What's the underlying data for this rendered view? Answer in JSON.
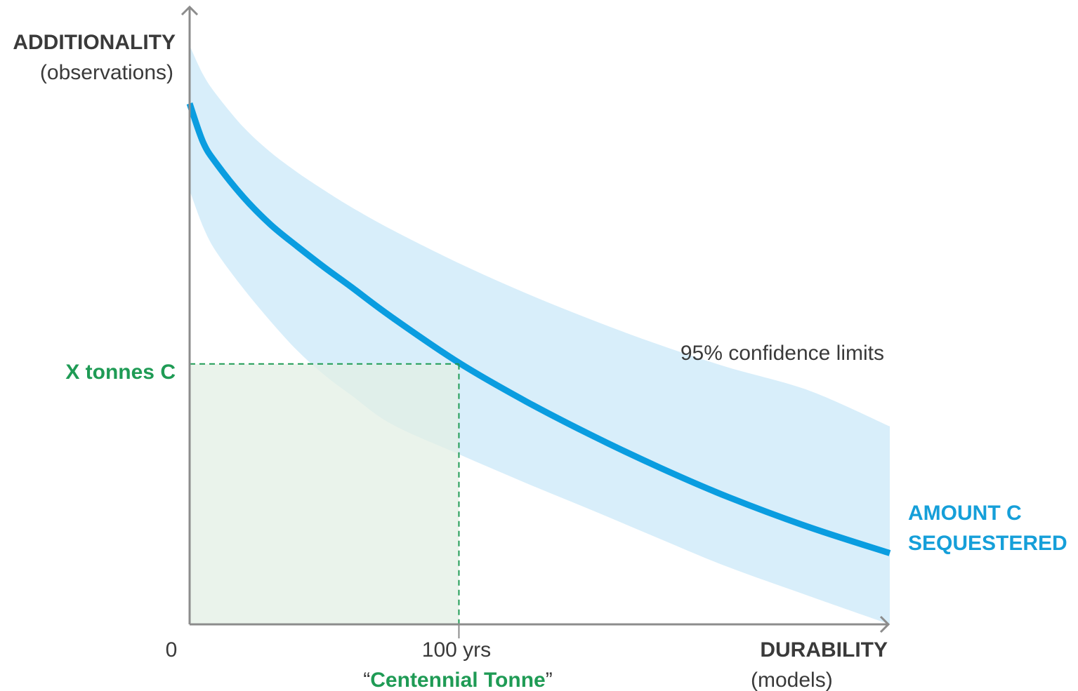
{
  "chart_data": {
    "type": "line",
    "y_axis": {
      "label": "ADDITIONALITY",
      "sublabel": "(observations)"
    },
    "x_axis": {
      "label": "DURABILITY",
      "sublabel": "(models)"
    },
    "x_ticks": {
      "origin": "0",
      "marker": "100 yrs"
    },
    "xlim": [
      0,
      260
    ],
    "ylim": [
      0,
      100
    ],
    "highlight": {
      "x": 100,
      "y": 45,
      "x_label": "“Centennial Tonne”",
      "x_label_parts": {
        "open_quote": "“",
        "text": "Centennial Tonne",
        "close_quote": "”"
      },
      "y_label": "X tonnes C"
    },
    "band_label": "95% confidence limits",
    "series": [
      {
        "name": "AMOUNT C SEQUESTERED",
        "name_lines": [
          "AMOUNT C",
          "SEQUESTERED"
        ],
        "x": [
          0,
          5,
          10,
          20,
          30,
          40,
          50,
          60,
          75,
          100,
          125,
          150,
          175,
          200,
          230,
          260
        ],
        "y": [
          90,
          83.3,
          79.6,
          73.8,
          69.1,
          65.3,
          61.7,
          58.3,
          53.1,
          45.2,
          38.5,
          32.5,
          27.0,
          22.0,
          16.8,
          17.7
        ],
        "lower": [
          75,
          68.7,
          64.3,
          58.0,
          52.4,
          47.3,
          43.1,
          39.6,
          34.6,
          29.4,
          24.4,
          19.6,
          14.7,
          9.9,
          4.9,
          0
        ],
        "upper": [
          100,
          95.0,
          91.5,
          85.9,
          81.6,
          78.1,
          75.0,
          72.1,
          68.2,
          62.4,
          57.2,
          52.5,
          48.2,
          44.4,
          40.4,
          34.2
        ]
      }
    ],
    "colors": {
      "line": "#0a9de0",
      "band": "#d8eefa",
      "highlight": "#1f9b55",
      "highlight_fill": "#e3efe4",
      "axis": "#8c8c8c",
      "text": "#3a3a3a"
    }
  }
}
